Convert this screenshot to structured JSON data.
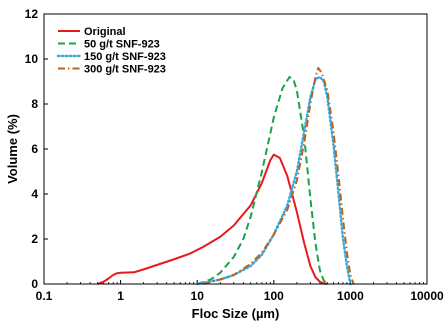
{
  "chart_data": {
    "type": "line",
    "xlabel": "Floc Size (µm)",
    "ylabel": "Volume (%)",
    "x_scale": "log",
    "xlim": [
      0.1,
      10000
    ],
    "ylim": [
      0,
      12
    ],
    "x_ticks": [
      "0.1",
      "1",
      "10",
      "100",
      "1000",
      "10000"
    ],
    "y_ticks": [
      "0",
      "2",
      "4",
      "6",
      "8",
      "10",
      "12"
    ],
    "grid": false,
    "legend_position": "top-left",
    "series": [
      {
        "name": "Original",
        "color": "#e8191c",
        "style": "solid",
        "x": [
          0.5,
          0.6,
          0.7,
          0.8,
          0.9,
          1,
          1.5,
          2,
          3,
          5,
          8,
          12,
          20,
          30,
          50,
          70,
          90,
          100,
          120,
          150,
          200,
          250,
          300,
          350,
          400,
          450,
          500
        ],
        "y": [
          0,
          0.1,
          0.25,
          0.4,
          0.48,
          0.5,
          0.52,
          0.65,
          0.85,
          1.1,
          1.35,
          1.65,
          2.1,
          2.6,
          3.5,
          4.5,
          5.5,
          5.75,
          5.6,
          4.8,
          3.2,
          1.8,
          0.8,
          0.3,
          0.1,
          0.02,
          0
        ]
      },
      {
        "name": "50 g/t SNF-923",
        "color": "#1aa34a",
        "style": "dashed",
        "x": [
          10,
          15,
          20,
          30,
          40,
          50,
          70,
          100,
          130,
          160,
          180,
          200,
          250,
          300,
          350,
          400,
          450,
          500
        ],
        "y": [
          0,
          0.2,
          0.5,
          1.2,
          2.0,
          3.0,
          5.0,
          7.4,
          8.7,
          9.2,
          9.1,
          8.6,
          6.5,
          3.8,
          1.8,
          0.6,
          0.15,
          0
        ]
      },
      {
        "name": "150  g/t SNF-923",
        "color": "#35a9e0",
        "style": "dotted",
        "x": [
          10,
          20,
          30,
          50,
          70,
          100,
          150,
          200,
          250,
          300,
          350,
          400,
          450,
          500,
          600,
          700,
          800,
          900,
          1000
        ],
        "y": [
          0,
          0.2,
          0.4,
          0.8,
          1.3,
          2.2,
          3.5,
          5.0,
          6.8,
          8.3,
          9.1,
          9.2,
          9.0,
          8.3,
          6.2,
          4.0,
          2.0,
          0.8,
          0
        ]
      },
      {
        "name": "300  g/t SNF-923",
        "color": "#b5651d",
        "style": "dashdot",
        "x": [
          12,
          20,
          30,
          50,
          70,
          100,
          150,
          200,
          250,
          300,
          350,
          380,
          420,
          500,
          600,
          700,
          800,
          900,
          1000,
          1100
        ],
        "y": [
          0,
          0.2,
          0.4,
          0.9,
          1.4,
          2.2,
          3.3,
          4.6,
          6.3,
          8.0,
          9.2,
          9.6,
          9.4,
          8.6,
          6.8,
          4.8,
          2.9,
          1.4,
          0.4,
          0
        ]
      }
    ]
  }
}
